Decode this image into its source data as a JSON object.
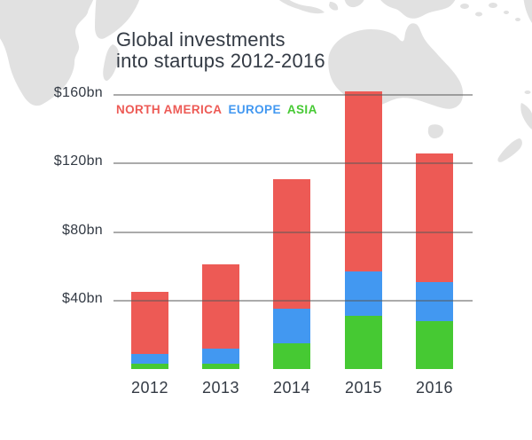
{
  "title": {
    "line1": "Global investments",
    "line2": "into startups 2012-2016"
  },
  "legend": {
    "items": [
      {
        "label": "NORTH AMERICA",
        "color": "#ed5a55"
      },
      {
        "label": "EUROPE",
        "color": "#4298f1"
      },
      {
        "label": "ASIA",
        "color": "#46c933"
      }
    ]
  },
  "chart_data": {
    "type": "bar",
    "stacked": true,
    "title": "Global investments into startups 2012-2016",
    "categories": [
      "2012",
      "2013",
      "2014",
      "2015",
      "2016"
    ],
    "series": [
      {
        "name": "NORTH AMERICA",
        "color": "#ed5a55",
        "values": [
          36,
          49,
          76,
          105,
          75
        ]
      },
      {
        "name": "EUROPE",
        "color": "#4298f1",
        "values": [
          6,
          9,
          20,
          26,
          23
        ]
      },
      {
        "name": "ASIA",
        "color": "#46c933",
        "values": [
          3,
          3,
          15,
          31,
          28
        ]
      }
    ],
    "totals": [
      45,
      61,
      111,
      162,
      126
    ],
    "unit": "$bn",
    "ylim": [
      0,
      168
    ],
    "y_ticks": [
      {
        "label": "$160bn",
        "value": 160
      },
      {
        "label": "$120bn",
        "value": 120
      },
      {
        "label": "$80bn",
        "value": 80
      },
      {
        "label": "$40bn",
        "value": 40
      }
    ],
    "gridlines": "horizontal, drawn over bars",
    "legend_position": "top-left inside plot"
  },
  "colors": {
    "background": "#ffffff",
    "map": "#e1e1e1",
    "text": "#333a44",
    "gridline": "rgba(88,88,88,0.5)"
  }
}
